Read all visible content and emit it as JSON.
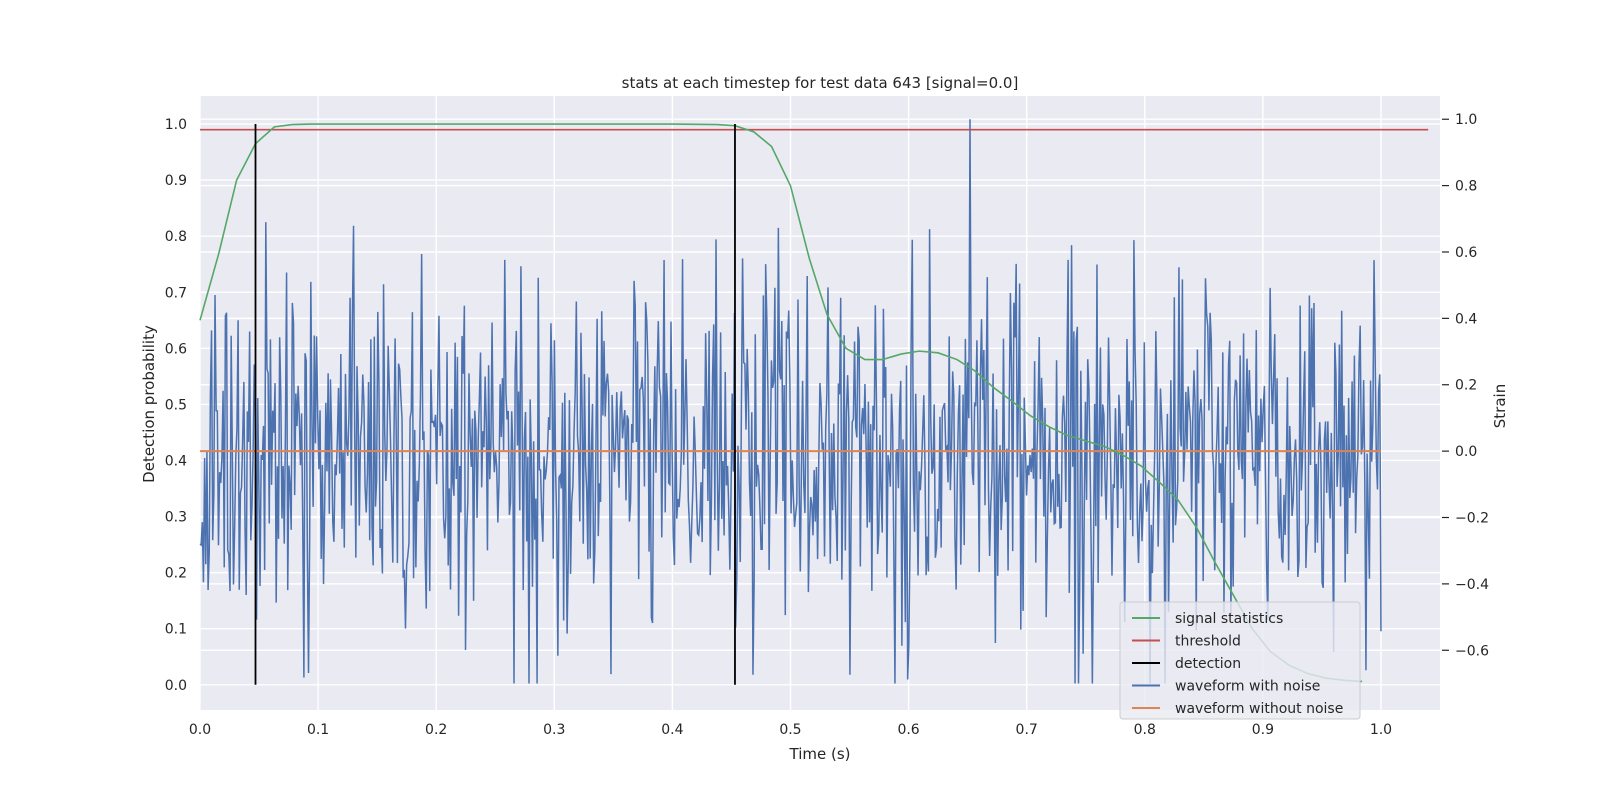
{
  "chart_data": {
    "type": "line",
    "title": "stats at each timestep for test data 643 [signal=0.0]",
    "xlabel": "Time (s)",
    "ylabel_left": "Detection probability",
    "ylabel_right": "Strain",
    "xlim": [
      0.0,
      1.05
    ],
    "ylim_left": [
      -0.045,
      1.05
    ],
    "ylim_right": [
      -0.78,
      1.07
    ],
    "x_ticks": [
      0.0,
      0.1,
      0.2,
      0.3,
      0.4,
      0.5,
      0.6,
      0.7,
      0.8,
      0.9,
      1.0
    ],
    "x_tick_labels": [
      "0.0",
      "0.1",
      "0.2",
      "0.3",
      "0.4",
      "0.5",
      "0.6",
      "0.7",
      "0.8",
      "0.9",
      "1.0"
    ],
    "y_ticks_left": [
      0.0,
      0.1,
      0.2,
      0.3,
      0.4,
      0.5,
      0.6,
      0.7,
      0.8,
      0.9,
      1.0
    ],
    "y_tick_labels_left": [
      "0.0",
      "0.1",
      "0.2",
      "0.3",
      "0.4",
      "0.5",
      "0.6",
      "0.7",
      "0.8",
      "0.9",
      "1.0"
    ],
    "y_ticks_right": [
      -0.6,
      -0.4,
      -0.2,
      0.0,
      0.2,
      0.4,
      0.6,
      0.8,
      1.0
    ],
    "y_tick_labels_right": [
      "−0.6",
      "−0.4",
      "−0.2",
      "0.0",
      "0.2",
      "0.4",
      "0.6",
      "0.8",
      "1.0"
    ],
    "grid": true,
    "background": "#eaeaf2",
    "legend_position": "lower-right",
    "series": [
      {
        "name": "signal statistics",
        "axis": "left",
        "color": "#55a868",
        "x": [
          0.0,
          0.016,
          0.031,
          0.047,
          0.063,
          0.078,
          0.094,
          0.2,
          0.3,
          0.4,
          0.438,
          0.453,
          0.469,
          0.484,
          0.5,
          0.516,
          0.531,
          0.547,
          0.563,
          0.578,
          0.594,
          0.609,
          0.625,
          0.641,
          0.656,
          0.672,
          0.688,
          0.703,
          0.719,
          0.734,
          0.75,
          0.766,
          0.781,
          0.797,
          0.813,
          0.828,
          0.844,
          0.859,
          0.875,
          0.891,
          0.906,
          0.922,
          0.938,
          0.953,
          0.969,
          0.984
        ],
        "values": [
          0.65,
          0.77,
          0.9,
          0.965,
          0.995,
          0.999,
          1.0,
          1.0,
          1.0,
          1.0,
          0.999,
          0.997,
          0.986,
          0.96,
          0.89,
          0.76,
          0.66,
          0.6,
          0.58,
          0.58,
          0.59,
          0.595,
          0.592,
          0.58,
          0.56,
          0.53,
          0.505,
          0.48,
          0.46,
          0.445,
          0.435,
          0.425,
          0.41,
          0.39,
          0.36,
          0.33,
          0.28,
          0.22,
          0.16,
          0.1,
          0.06,
          0.035,
          0.02,
          0.012,
          0.008,
          0.006
        ]
      },
      {
        "name": "threshold",
        "axis": "left",
        "color": "#c44e52",
        "value": 0.99
      },
      {
        "name": "detection",
        "axis": "left",
        "color": "#000000",
        "x": [
          0.047,
          0.453
        ],
        "range": [
          0.0,
          1.0
        ]
      },
      {
        "name": "waveform with noise",
        "axis": "right",
        "color": "#4c72b0",
        "x_range": [
          0.0,
          1.0
        ],
        "n_points": 1024,
        "range": [
          -0.7,
          1.0
        ]
      },
      {
        "name": "waveform without noise",
        "axis": "right",
        "color": "#dd8452",
        "value": 0.0
      }
    ]
  }
}
